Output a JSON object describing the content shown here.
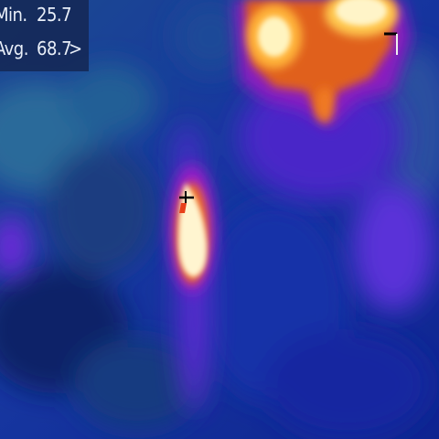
{
  "overlay": {
    "min_label": "Min.",
    "min_value": "25.7",
    "avg_label": "Avg.",
    "avg_value": "68.7",
    "avg_chevron": ">"
  },
  "colors": {
    "cold": "#1230a8",
    "cool": "#2a5aa8",
    "mid": "#7a1fd8",
    "warm": "#f08a1a",
    "hot": "#fff6c8",
    "panel": "#142855"
  }
}
